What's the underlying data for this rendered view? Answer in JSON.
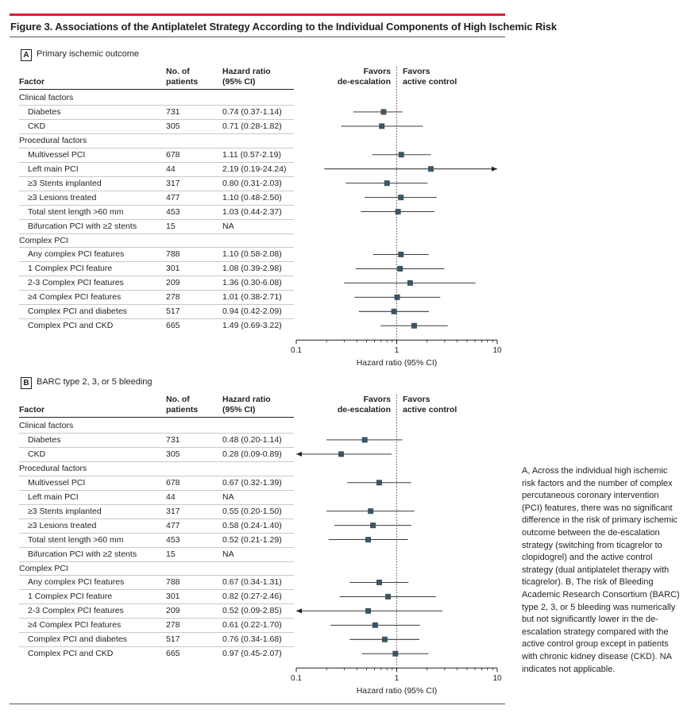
{
  "figure_title": "Figure 3. Associations of the Antiplatelet Strategy According to the Individual Components of High Ischemic Risk",
  "side_note": "A, Across the individual high ischemic risk factors and the number of complex percutaneous coronary intervention (PCI) features, there was no significant difference in the risk of primary ischemic outcome between the de-escalation strategy (switching from ticagrelor to clopidogrel) and the active control strategy (dual antiplatelet therapy with ticagrelor). B, The risk of Bleeding Academic Research Consortium (BARC) type 2, 3, or 5 bleeding was numerically but not significantly lower in the de-escalation strategy compared with the active control group except in patients with chronic kidney disease (CKD). NA indicates not applicable.",
  "colors": {
    "accent_red": "#d71f30",
    "marker": "#3b5563",
    "line": "#231f20"
  },
  "chart_data": [
    {
      "type": "forest",
      "panel_letter": "A",
      "title": "Primary ischemic outcome",
      "headers": {
        "factor": "Factor",
        "n_line1": "No. of",
        "n_line2": "patients",
        "hr_line1": "Hazard ratio",
        "hr_line2": "(95% CI)"
      },
      "favors_left": [
        "Favors",
        "de-escalation"
      ],
      "favors_right": [
        "Favors",
        "active control"
      ],
      "xlabel": "Hazard ratio (95% CI)",
      "xscale": "log",
      "xlim": [
        0.1,
        10
      ],
      "xticks": [
        "0.1",
        "1",
        "10"
      ],
      "rows": [
        {
          "label": "Clinical factors",
          "group": true
        },
        {
          "label": "Diabetes",
          "n": "731",
          "hr_text": "0.74 (0.37-1.14)",
          "hr": 0.74,
          "lo": 0.37,
          "hi": 1.14
        },
        {
          "label": "CKD",
          "n": "305",
          "hr_text": "0.71 (0.28-1.82)",
          "hr": 0.71,
          "lo": 0.28,
          "hi": 1.82
        },
        {
          "label": "Procedural factors",
          "group": true
        },
        {
          "label": "Multivessel PCI",
          "n": "678",
          "hr_text": "1.11 (0.57-2.19)",
          "hr": 1.11,
          "lo": 0.57,
          "hi": 2.19
        },
        {
          "label": "Left main PCI",
          "n": "44",
          "hr_text": "2.19 (0.19-24.24)",
          "hr": 2.19,
          "lo": 0.19,
          "hi": 24.24
        },
        {
          "label": "≥3 Stents implanted",
          "n": "317",
          "hr_text": "0.80 (0.31-2.03)",
          "hr": 0.8,
          "lo": 0.31,
          "hi": 2.03
        },
        {
          "label": "≥3 Lesions treated",
          "n": "477",
          "hr_text": "1.10 (0.48-2.50)",
          "hr": 1.1,
          "lo": 0.48,
          "hi": 2.5
        },
        {
          "label": "Total stent length >60 mm",
          "n": "453",
          "hr_text": "1.03 (0.44-2.37)",
          "hr": 1.03,
          "lo": 0.44,
          "hi": 2.37
        },
        {
          "label": "Bifurcation PCI with ≥2 stents",
          "n": "15",
          "hr_text": "NA"
        },
        {
          "label": "Complex PCI",
          "group": true
        },
        {
          "label": "Any complex PCI features",
          "n": "788",
          "hr_text": "1.10 (0.58-2.08)",
          "hr": 1.1,
          "lo": 0.58,
          "hi": 2.08
        },
        {
          "label": "1 Complex PCI feature",
          "n": "301",
          "hr_text": "1.08 (0.39-2.98)",
          "hr": 1.08,
          "lo": 0.39,
          "hi": 2.98
        },
        {
          "label": "2-3 Complex PCI features",
          "n": "209",
          "hr_text": "1.36 (0.30-6.08)",
          "hr": 1.36,
          "lo": 0.3,
          "hi": 6.08
        },
        {
          "label": "≥4 Complex PCI features",
          "n": "278",
          "hr_text": "1.01 (0.38-2.71)",
          "hr": 1.01,
          "lo": 0.38,
          "hi": 2.71
        },
        {
          "label": "Complex PCI and diabetes",
          "n": "517",
          "hr_text": "0.94 (0.42-2.09)",
          "hr": 0.94,
          "lo": 0.42,
          "hi": 2.09
        },
        {
          "label": "Complex PCI and CKD",
          "n": "665",
          "hr_text": "1.49 (0.69-3.22)",
          "hr": 1.49,
          "lo": 0.69,
          "hi": 3.22
        }
      ]
    },
    {
      "type": "forest",
      "panel_letter": "B",
      "title": "BARC type 2, 3, or 5 bleeding",
      "headers": {
        "factor": "Factor",
        "n_line1": "No. of",
        "n_line2": "patients",
        "hr_line1": "Hazard ratio",
        "hr_line2": "(95% CI)"
      },
      "favors_left": [
        "Favors",
        "de-escalation"
      ],
      "favors_right": [
        "Favors",
        "active control"
      ],
      "xlabel": "Hazard ratio (95% CI)",
      "xscale": "log",
      "xlim": [
        0.1,
        10
      ],
      "xticks": [
        "0.1",
        "1",
        "10"
      ],
      "rows": [
        {
          "label": "Clinical factors",
          "group": true
        },
        {
          "label": "Diabetes",
          "n": "731",
          "hr_text": "0.48 (0.20-1.14)",
          "hr": 0.48,
          "lo": 0.2,
          "hi": 1.14
        },
        {
          "label": "CKD",
          "n": "305",
          "hr_text": "0.28 (0.09-0.89)",
          "hr": 0.28,
          "lo": 0.09,
          "hi": 0.89
        },
        {
          "label": "Procedural factors",
          "group": true
        },
        {
          "label": "Multivessel PCI",
          "n": "678",
          "hr_text": "0.67 (0.32-1.39)",
          "hr": 0.67,
          "lo": 0.32,
          "hi": 1.39
        },
        {
          "label": "Left main PCI",
          "n": "44",
          "hr_text": "NA"
        },
        {
          "label": "≥3 Stents implanted",
          "n": "317",
          "hr_text": "0.55 (0.20-1.50)",
          "hr": 0.55,
          "lo": 0.2,
          "hi": 1.5
        },
        {
          "label": "≥3 Lesions treated",
          "n": "477",
          "hr_text": "0.58 (0.24-1.40)",
          "hr": 0.58,
          "lo": 0.24,
          "hi": 1.4
        },
        {
          "label": "Total stent length >60 mm",
          "n": "453",
          "hr_text": "0.52 (0.21-1.29)",
          "hr": 0.52,
          "lo": 0.21,
          "hi": 1.29
        },
        {
          "label": "Bifurcation PCI with ≥2 stents",
          "n": "15",
          "hr_text": "NA"
        },
        {
          "label": "Complex PCI",
          "group": true
        },
        {
          "label": "Any complex PCI features",
          "n": "788",
          "hr_text": "0.67 (0.34-1.31)",
          "hr": 0.67,
          "lo": 0.34,
          "hi": 1.31
        },
        {
          "label": "1 Complex PCI feature",
          "n": "301",
          "hr_text": "0.82 (0.27-2.46)",
          "hr": 0.82,
          "lo": 0.27,
          "hi": 2.46
        },
        {
          "label": "2-3 Complex PCI features",
          "n": "209",
          "hr_text": "0.52 (0.09-2.85)",
          "hr": 0.52,
          "lo": 0.09,
          "hi": 2.85
        },
        {
          "label": "≥4 Complex PCI features",
          "n": "278",
          "hr_text": "0.61 (0.22-1.70)",
          "hr": 0.61,
          "lo": 0.22,
          "hi": 1.7
        },
        {
          "label": "Complex PCI and diabetes",
          "n": "517",
          "hr_text": "0.76 (0.34-1.68)",
          "hr": 0.76,
          "lo": 0.34,
          "hi": 1.68
        },
        {
          "label": "Complex PCI and CKD",
          "n": "665",
          "hr_text": "0.97 (0.45-2.07)",
          "hr": 0.97,
          "lo": 0.45,
          "hi": 2.07
        }
      ]
    }
  ]
}
